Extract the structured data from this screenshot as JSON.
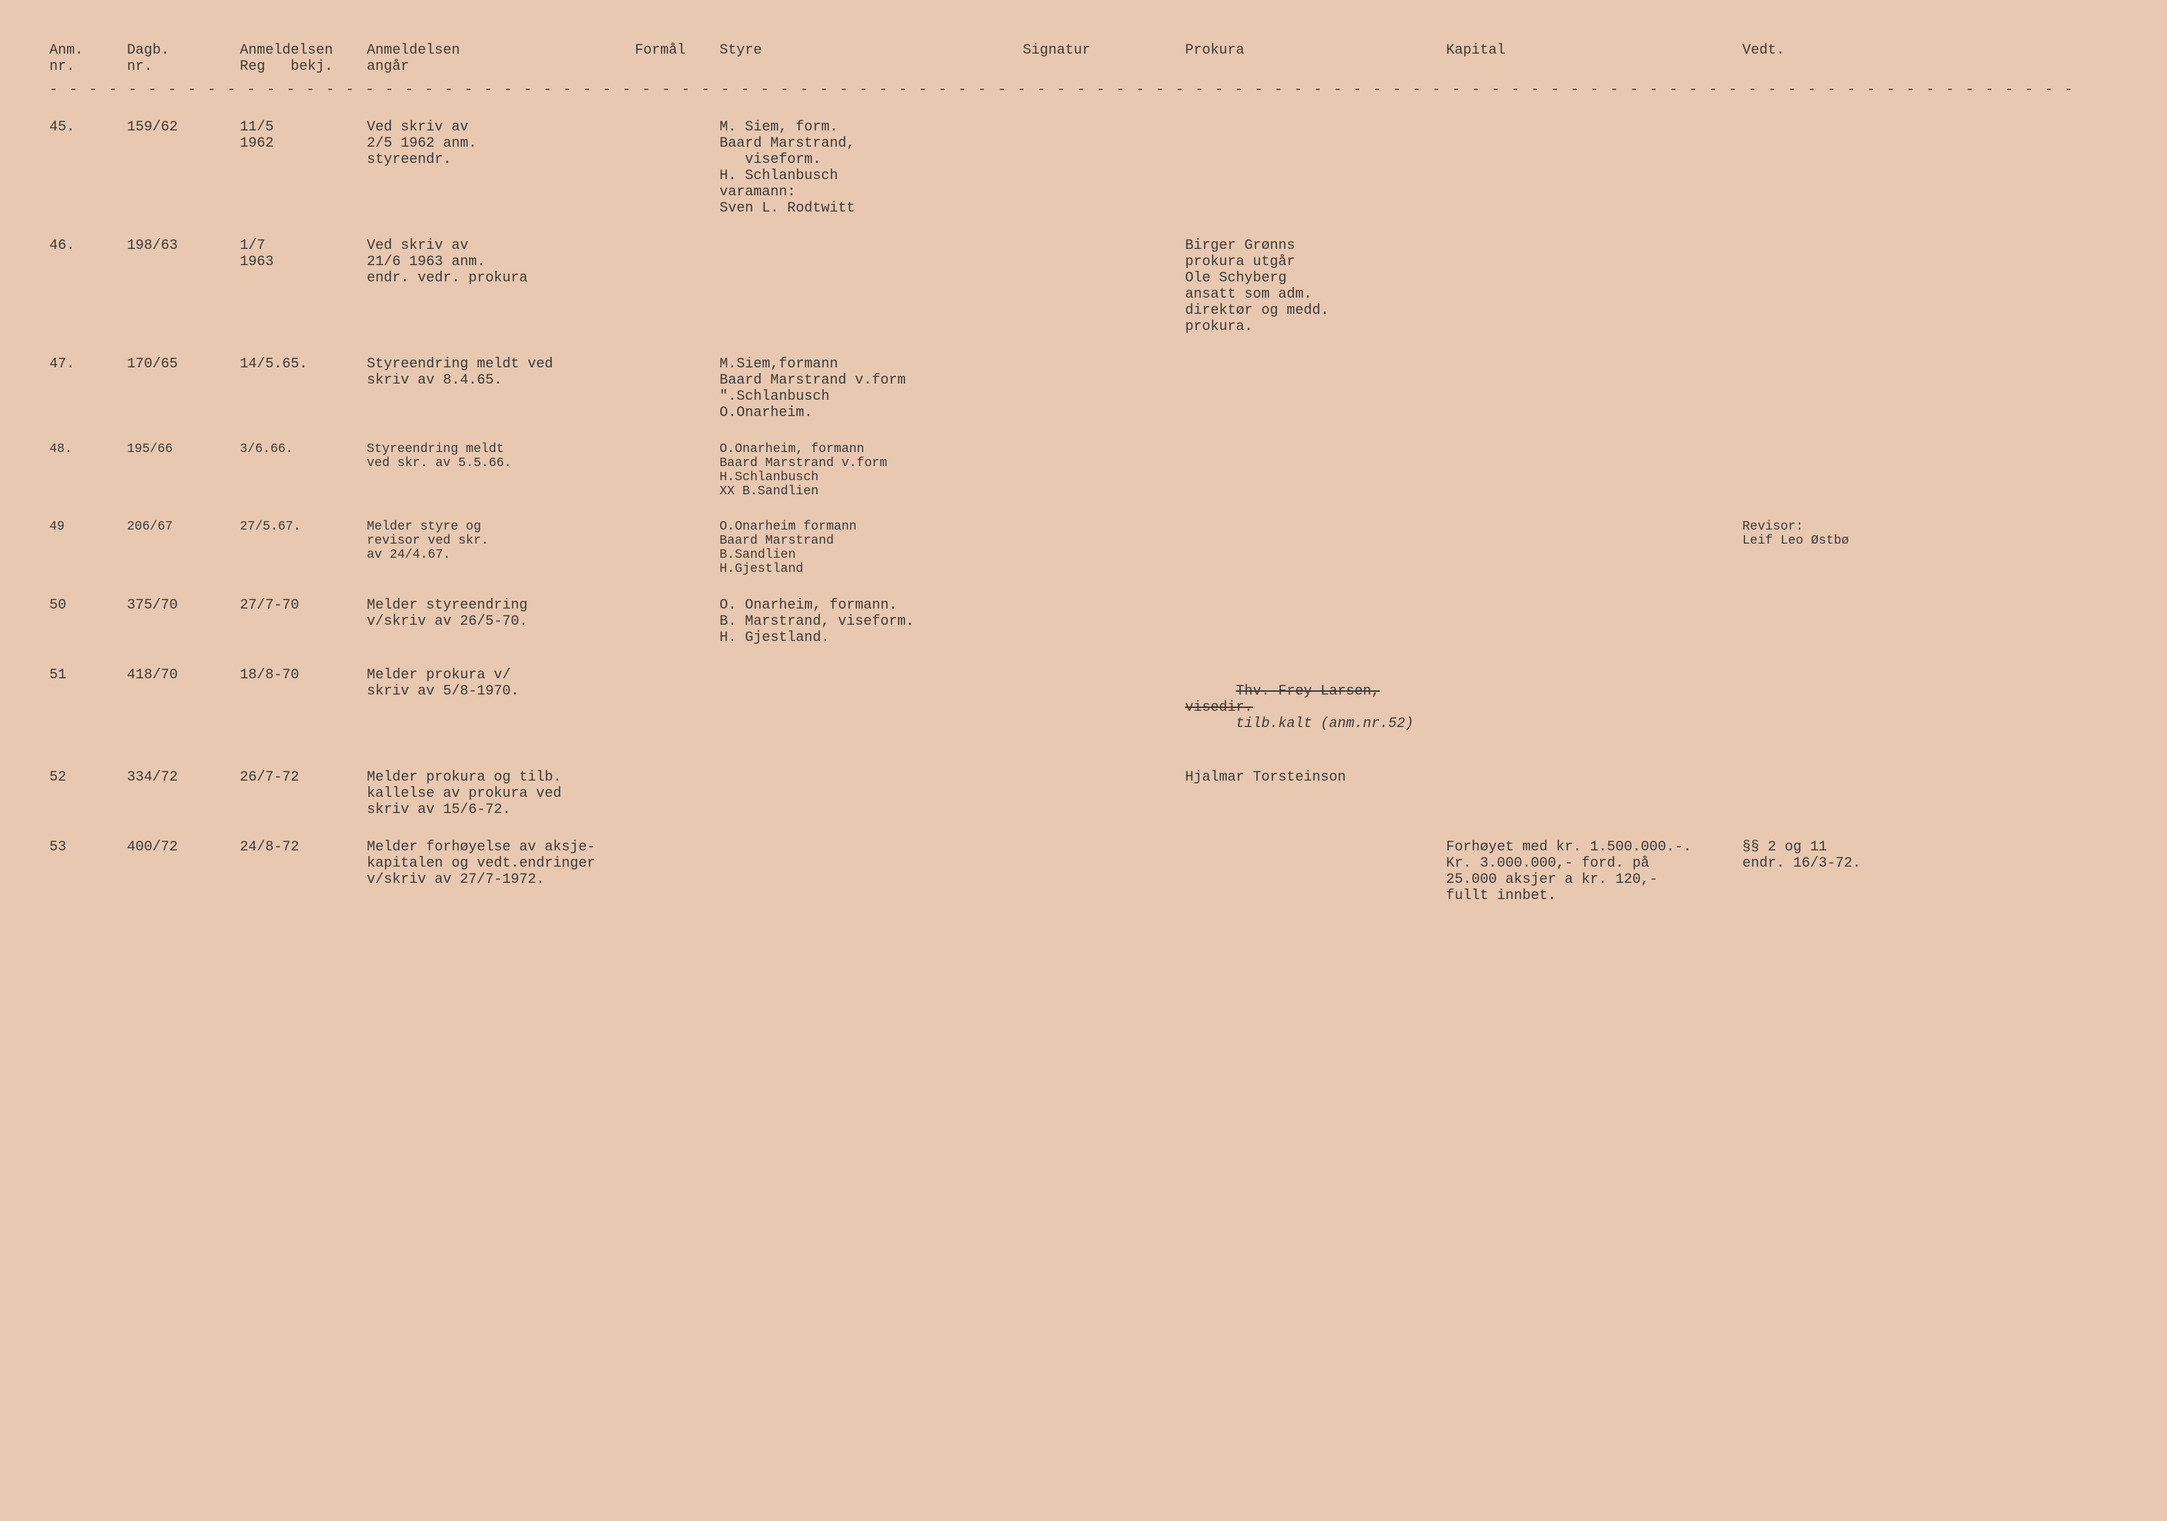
{
  "headers": {
    "anm": "Anm.\nnr.",
    "dagb": "Dagb.\nnr.",
    "reg": "Anmeldelsen\nReg   bekj.",
    "angar": "Anmeldelsen\nangår",
    "formal": "Formål",
    "styre": "Styre",
    "signatur": "Signatur",
    "prokura": "Prokura",
    "kapital": "Kapital",
    "vedt": "Vedt."
  },
  "divider": "- - - - - - - - - - - - - - - - - - - - - - - - - - - - - - - - - - - - - - - - - - - - - - - - - - - - - - - - - - - - - - - - - - - - - - - - - - - - - - - - - - - - - - - - - - - - - - - - - - - - - - -",
  "entries": [
    {
      "anm": "45.",
      "dagb": "159/62",
      "reg": "11/5\n1962",
      "angar": "Ved skriv av\n2/5 1962 anm.\nstyreendr.",
      "styre": "M. Siem, form.\nBaard Marstrand,\n   viseform.\nH. Schlanbusch\nvaramann:\nSven L. Rodtwitt"
    },
    {
      "anm": "46.",
      "dagb": "198/63",
      "reg": "1/7\n1963",
      "angar": "Ved skriv av\n21/6 1963 anm.\nendr. vedr. prokura",
      "prokura": "Birger Grønns\nprokura utgår\nOle Schyberg\nansatt som adm.\ndirektør og medd.\nprokura."
    },
    {
      "anm": "47.",
      "dagb": "170/65",
      "reg": "14/5.65.",
      "angar": "Styreendring meldt ved\nskriv av 8.4.65.",
      "styre": "M.Siem,formann\nBaard Marstrand v.form\n\".Schlanbusch\nO.Onarheim."
    },
    {
      "anm": "48.",
      "dagb": "195/66",
      "reg": "3/6.66.",
      "angar": "Styreendring meldt\nved skr. av 5.5.66.",
      "styre": "O.Onarheim, formann\nBaard Marstrand v.form\nH.Schlanbusch\nXX B.Sandlien"
    },
    {
      "anm": "49",
      "dagb": "206/67",
      "reg": "27/5.67.",
      "angar": "Melder styre og\nrevisor ved skr.\nav 24/4.67.",
      "styre": "O.Onarheim formann\nBaard Marstrand\nB.Sandlien\nH.Gjestland",
      "vedt": "Revisor:\nLeif Leo Østbø"
    },
    {
      "anm": "50",
      "dagb": "375/70",
      "reg": "27/7-70",
      "angar": "Melder styreendring\nv/skriv av 26/5-70.",
      "styre": "O. Onarheim, formann.\nB. Marstrand, viseform.\nH. Gjestland."
    },
    {
      "anm": "51",
      "dagb": "418/70",
      "reg": "18/8-70",
      "angar": "Melder prokura v/\nskriv av 5/8-1970.",
      "prokura_strike": "Thv. Frey Larsen,\nvisedir.",
      "prokura_hand": "tilb.kalt (anm.nr.52)"
    },
    {
      "anm": "52",
      "dagb": "334/72",
      "reg": "26/7-72",
      "angar": "Melder prokura og tilb.\nkallelse av prokura ved\nskriv av 15/6-72.",
      "prokura": "Hjalmar Torsteinson"
    },
    {
      "anm": "53",
      "dagb": "400/72",
      "reg": "24/8-72",
      "angar": "Melder forhøyelse av aksje-\nkapitalen og vedt.endringer\nv/skriv av 27/7-1972.",
      "kapital": "Forhøyet med kr. 1.500.000.-.\nKr. 3.000.000,- ford. på\n25.000 aksjer a kr. 120,-\nfullt innbet.",
      "vedt": "§§ 2 og 11\nendr. 16/3-72."
    }
  ]
}
